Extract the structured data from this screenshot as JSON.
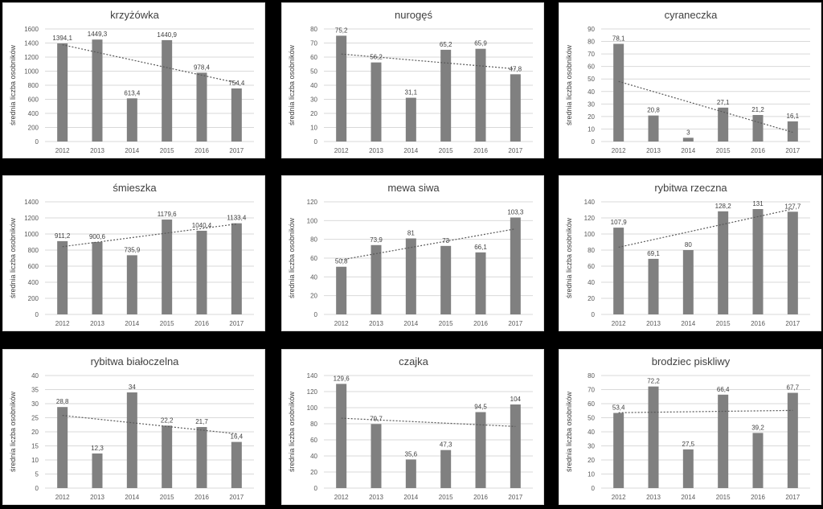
{
  "y_axis_label": "średnia liczba osobników",
  "bar_color": "#808080",
  "trend_color": "#595959",
  "chart_data": [
    {
      "type": "bar",
      "title": "krzyżówka",
      "categories": [
        "2012",
        "2013",
        "2014",
        "2015",
        "2016",
        "2017"
      ],
      "values": [
        1394.1,
        1449.3,
        613.4,
        1440.9,
        978.4,
        754.4
      ],
      "labels": [
        "1394,1",
        "1449,3",
        "613,4",
        "1440,9",
        "978,4",
        "754,4"
      ],
      "ylim": [
        0,
        1600
      ],
      "yticks": [
        "0",
        "200",
        "400",
        "600",
        "800",
        "1000",
        "1200",
        "1400",
        "1600"
      ],
      "ylabel": "średnia liczba osobników",
      "trendline": "linear",
      "grid": true
    },
    {
      "type": "bar",
      "title": "nurogęś",
      "categories": [
        "2012",
        "2013",
        "2014",
        "2015",
        "2016",
        "2017"
      ],
      "values": [
        75.2,
        56.2,
        31.1,
        65.2,
        65.9,
        47.8
      ],
      "labels": [
        "75,2",
        "56,2",
        "31,1",
        "65,2",
        "65,9",
        "47,8"
      ],
      "ylim": [
        0,
        80
      ],
      "yticks": [
        "0",
        "10",
        "20",
        "30",
        "40",
        "50",
        "60",
        "70",
        "80"
      ],
      "ylabel": "średnia liczba osobników",
      "trendline": "linear",
      "grid": true
    },
    {
      "type": "bar",
      "title": "cyraneczka",
      "categories": [
        "2012",
        "2013",
        "2014",
        "2015",
        "2016",
        "2017"
      ],
      "values": [
        78.1,
        20.8,
        3,
        27.1,
        21.2,
        16.1
      ],
      "labels": [
        "78,1",
        "20,8",
        "3",
        "27,1",
        "21,2",
        "16,1"
      ],
      "ylim": [
        0,
        90
      ],
      "yticks": [
        "0",
        "10",
        "20",
        "30",
        "40",
        "50",
        "60",
        "70",
        "80",
        "90"
      ],
      "ylabel": "średnia liczba osobników",
      "trendline": "linear",
      "grid": true
    },
    {
      "type": "bar",
      "title": "śmieszka",
      "categories": [
        "2012",
        "2013",
        "2014",
        "2015",
        "2016",
        "2017"
      ],
      "values": [
        911.2,
        900.6,
        735.9,
        1179.6,
        1040.4,
        1133.4
      ],
      "labels": [
        "911,2",
        "900,6",
        "735,9",
        "1179,6",
        "1040,4",
        "1133,4"
      ],
      "ylim": [
        0,
        1400
      ],
      "yticks": [
        "0",
        "200",
        "400",
        "600",
        "800",
        "1000",
        "1200",
        "1400"
      ],
      "ylabel": "średnia liczba osobników",
      "trendline": "linear",
      "grid": true
    },
    {
      "type": "bar",
      "title": "mewa siwa",
      "categories": [
        "2012",
        "2013",
        "2014",
        "2015",
        "2016",
        "2017"
      ],
      "values": [
        50.8,
        73.9,
        81,
        73,
        66.1,
        103.3
      ],
      "labels": [
        "50,8",
        "73,9",
        "81",
        "73",
        "66,1",
        "103,3"
      ],
      "ylim": [
        0,
        120
      ],
      "yticks": [
        "0",
        "20",
        "40",
        "60",
        "80",
        "100",
        "120"
      ],
      "ylabel": "średnia liczba osobników",
      "trendline": "linear",
      "grid": true
    },
    {
      "type": "bar",
      "title": "rybitwa rzeczna",
      "categories": [
        "2012",
        "2013",
        "2014",
        "2015",
        "2016",
        "2017"
      ],
      "values": [
        107.9,
        69.1,
        80,
        128.2,
        131,
        127.7
      ],
      "labels": [
        "107,9",
        "69,1",
        "80",
        "128,2",
        "131",
        "127,7"
      ],
      "ylim": [
        0,
        140
      ],
      "yticks": [
        "0",
        "20",
        "40",
        "60",
        "80",
        "100",
        "120",
        "140"
      ],
      "ylabel": "średnia liczba osobników",
      "trendline": "linear",
      "grid": true
    },
    {
      "type": "bar",
      "title": "rybitwa białoczelna",
      "categories": [
        "2012",
        "2013",
        "2014",
        "2015",
        "2016",
        "2017"
      ],
      "values": [
        28.8,
        12.3,
        34,
        22.2,
        21.7,
        16.4
      ],
      "labels": [
        "28,8",
        "12,3",
        "34",
        "22,2",
        "21,7",
        "16,4"
      ],
      "ylim": [
        0,
        40
      ],
      "yticks": [
        "0",
        "5",
        "10",
        "15",
        "20",
        "25",
        "30",
        "35",
        "40"
      ],
      "ylabel": "średnia liczba osobników",
      "trendline": "linear",
      "grid": true
    },
    {
      "type": "bar",
      "title": "czajka",
      "categories": [
        "2012",
        "2013",
        "2014",
        "2015",
        "2016",
        "2017"
      ],
      "values": [
        129.6,
        79.7,
        35.6,
        47.3,
        94.5,
        104
      ],
      "labels": [
        "129,6",
        "79,7",
        "35,6",
        "47,3",
        "94,5",
        "104"
      ],
      "ylim": [
        0,
        140
      ],
      "yticks": [
        "0",
        "20",
        "40",
        "60",
        "80",
        "100",
        "120",
        "140"
      ],
      "ylabel": "średnia liczba osobników",
      "trendline": "linear",
      "grid": true
    },
    {
      "type": "bar",
      "title": "brodziec piskliwy",
      "categories": [
        "2012",
        "2013",
        "2014",
        "2015",
        "2016",
        "2017"
      ],
      "values": [
        53.4,
        72.2,
        27.5,
        66.4,
        39.2,
        67.7
      ],
      "labels": [
        "53,4",
        "72,2",
        "27,5",
        "66,4",
        "39,2",
        "67,7"
      ],
      "ylim": [
        0,
        80
      ],
      "yticks": [
        "0",
        "10",
        "20",
        "30",
        "40",
        "50",
        "60",
        "70",
        "80"
      ],
      "ylabel": "średnia liczba osobników",
      "trendline": "linear",
      "grid": true
    }
  ]
}
